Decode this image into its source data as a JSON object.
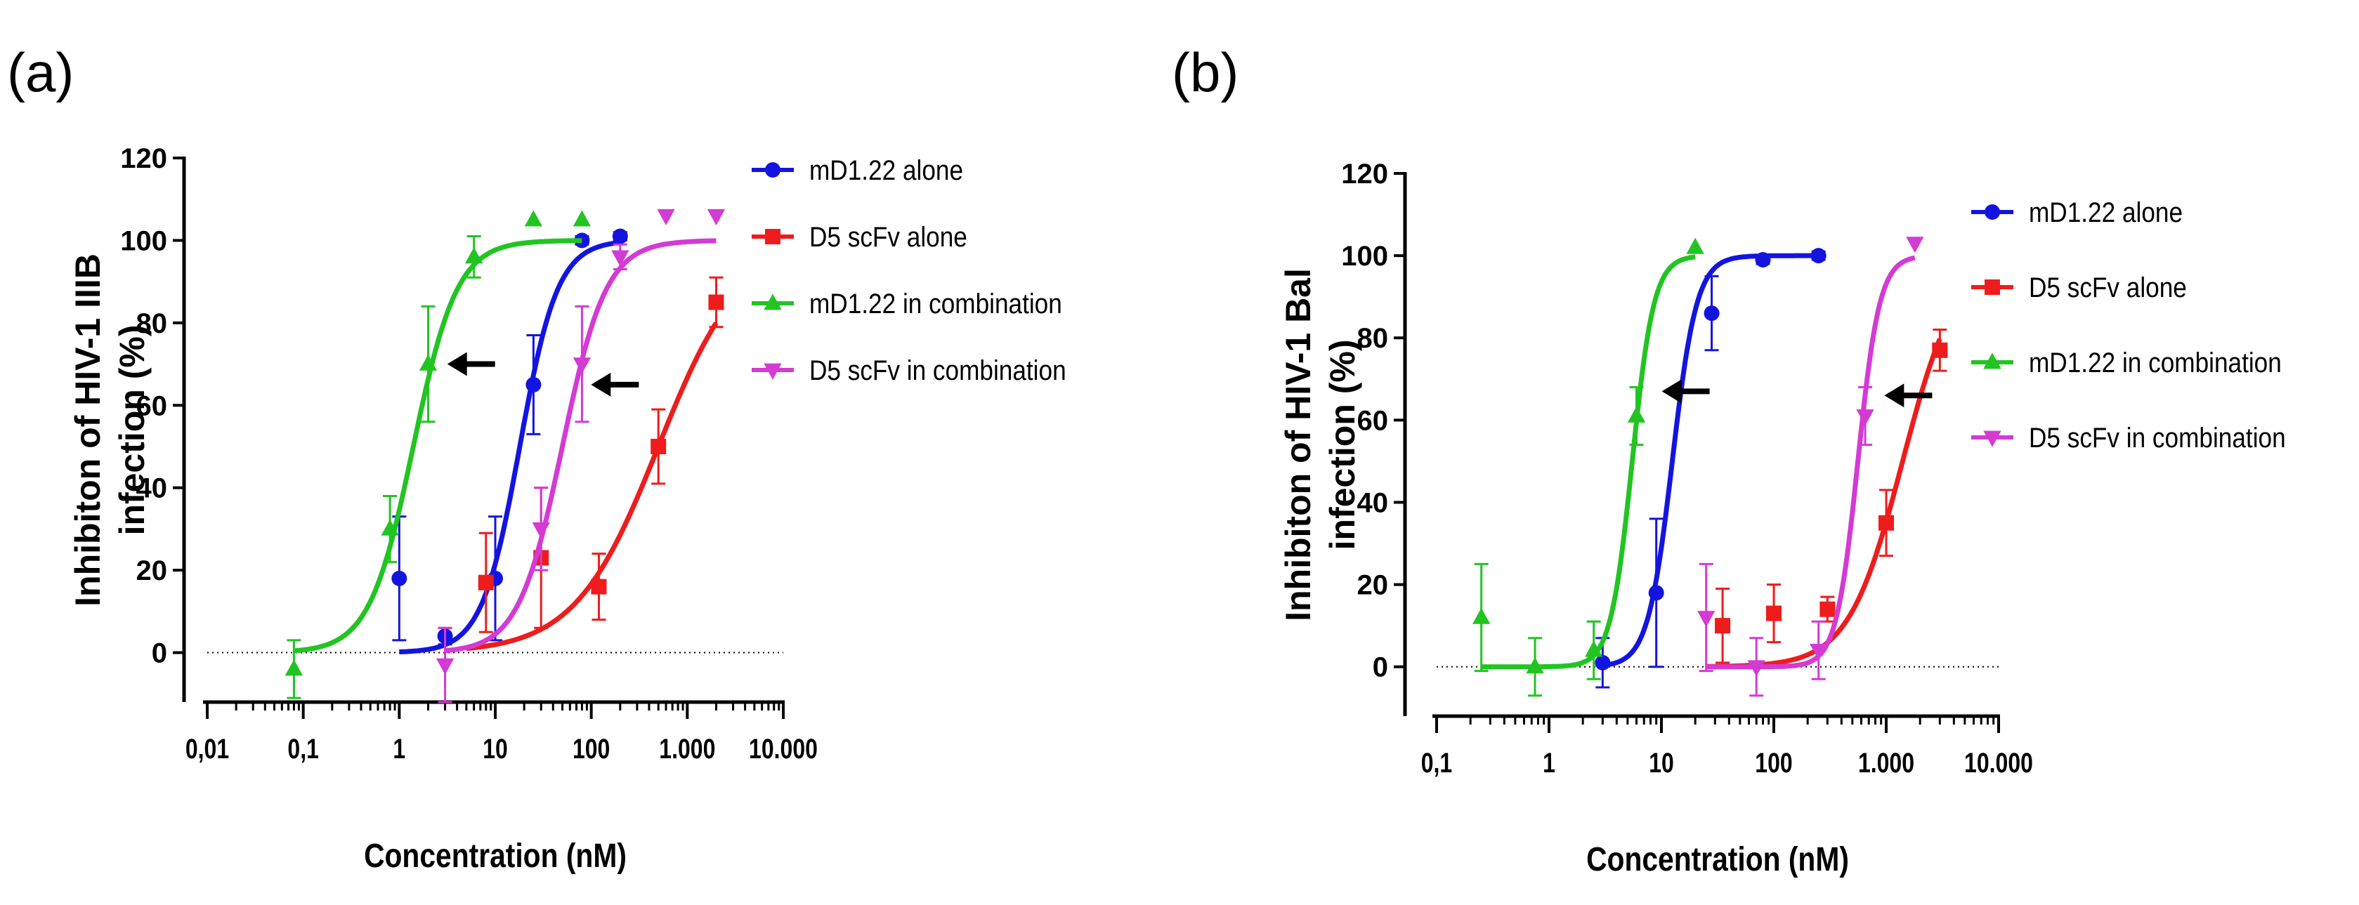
{
  "panels": [
    {
      "letter": "(a)",
      "ylabel_line1": "Inhibiton of HIV-1 IIIB",
      "ylabel_line2": "infection (%)",
      "xlabel": "Concentration (nM)"
    },
    {
      "letter": "(b)",
      "ylabel_line1": "Inhibiton of HIV-1 Bal",
      "ylabel_line2": "infection (%)",
      "xlabel": "Concentration (nM)"
    }
  ],
  "chart_data": [
    {
      "type": "scatter",
      "panel": "(a)",
      "xscale": "log",
      "xlim": [
        0.01,
        10000
      ],
      "ylim": [
        -12,
        120
      ],
      "xticks": [
        0.01,
        0.1,
        1,
        10,
        100,
        1000,
        10000
      ],
      "xtick_labels": [
        "0,01",
        "0,1",
        "1",
        "10",
        "100",
        "1.000",
        "10.000"
      ],
      "yticks": [
        0,
        20,
        40,
        60,
        80,
        100,
        120
      ],
      "ytick_labels": [
        "0",
        "20",
        "40",
        "60",
        "80",
        "100",
        "120"
      ],
      "xlabel": "Concentration (nM)",
      "ylabel": "Inhibiton of HIV-1 IIIB infection (%)",
      "reference_line_y": 0,
      "legend_position": "right",
      "series": [
        {
          "name": "mD1.22 alone",
          "color": "#1414e0",
          "marker": "circle",
          "points": [
            {
              "x": 1,
              "y": 18,
              "err": 15
            },
            {
              "x": 3,
              "y": 4,
              "err": 2
            },
            {
              "x": 10,
              "y": 18,
              "err": 15
            },
            {
              "x": 25,
              "y": 65,
              "err": 12
            },
            {
              "x": 80,
              "y": 100,
              "err": 1
            },
            {
              "x": 200,
              "y": 101,
              "err": 1
            }
          ],
          "curve": {
            "ic50": 18,
            "hill": 2.2,
            "xmin": 1,
            "xmax": 200
          }
        },
        {
          "name": "D5 scFv alone",
          "color": "#ee1c1c",
          "marker": "square",
          "points": [
            {
              "x": 8,
              "y": 17,
              "err": 12
            },
            {
              "x": 30,
              "y": 23,
              "err": 17
            },
            {
              "x": 120,
              "y": 16,
              "err": 8
            },
            {
              "x": 500,
              "y": 50,
              "err": 9
            },
            {
              "x": 2000,
              "y": 85,
              "err": 6
            }
          ],
          "curve": {
            "ic50": 500,
            "hill": 1.0,
            "xmin": 5,
            "xmax": 2000
          }
        },
        {
          "name": "mD1.22 in combination",
          "color": "#22c422",
          "marker": "triangle-up",
          "points": [
            {
              "x": 0.08,
              "y": -4,
              "err": 7
            },
            {
              "x": 0.8,
              "y": 30,
              "err": 8
            },
            {
              "x": 2,
              "y": 70,
              "err": 14
            },
            {
              "x": 6,
              "y": 96,
              "err": 5
            },
            {
              "x": 25,
              "y": 105,
              "err": 0
            },
            {
              "x": 80,
              "y": 105,
              "err": 0
            }
          ],
          "curve": {
            "ic50": 1.4,
            "hill": 1.9,
            "xmin": 0.08,
            "xmax": 80
          }
        },
        {
          "name": "D5 scFv in combination",
          "color": "#d43ad4",
          "marker": "triangle-down",
          "points": [
            {
              "x": 3,
              "y": -3,
              "err": 9
            },
            {
              "x": 30,
              "y": 30,
              "err": 10
            },
            {
              "x": 80,
              "y": 70,
              "err": 14
            },
            {
              "x": 200,
              "y": 96,
              "err": 3
            },
            {
              "x": 600,
              "y": 106,
              "err": 0
            },
            {
              "x": 2000,
              "y": 106,
              "err": 0
            }
          ],
          "curve": {
            "ic50": 50,
            "hill": 1.9,
            "xmin": 3,
            "xmax": 2000
          }
        }
      ],
      "annotations": [
        {
          "type": "arrow",
          "direction": "left",
          "x": 3.5,
          "y": 70
        },
        {
          "type": "arrow",
          "direction": "left",
          "x": 110,
          "y": 65
        }
      ]
    },
    {
      "type": "scatter",
      "panel": "(b)",
      "xscale": "log",
      "xlim": [
        0.1,
        10000
      ],
      "ylim": [
        -12,
        120
      ],
      "xticks": [
        0.1,
        1,
        10,
        100,
        1000,
        10000
      ],
      "xtick_labels": [
        "0,1",
        "1",
        "10",
        "100",
        "1.000",
        "10.000"
      ],
      "yticks": [
        0,
        20,
        40,
        60,
        80,
        100,
        120
      ],
      "ytick_labels": [
        "0",
        "20",
        "40",
        "60",
        "80",
        "100",
        "120"
      ],
      "xlabel": "Concentration (nM)",
      "ylabel": "Inhibiton of HIV-1 Bal infection (%)",
      "reference_line_y": 0,
      "legend_position": "right",
      "series": [
        {
          "name": "mD1.22 alone",
          "color": "#1414e0",
          "marker": "circle",
          "points": [
            {
              "x": 3,
              "y": 1,
              "err": 6
            },
            {
              "x": 9,
              "y": 18,
              "err": 18
            },
            {
              "x": 28,
              "y": 86,
              "err": 9
            },
            {
              "x": 80,
              "y": 99,
              "err": 1
            },
            {
              "x": 250,
              "y": 100,
              "err": 1
            }
          ],
          "curve": {
            "ic50": 12.5,
            "hill": 4.0,
            "xmin": 3,
            "xmax": 250
          }
        },
        {
          "name": "D5 scFv alone",
          "color": "#ee1c1c",
          "marker": "square",
          "points": [
            {
              "x": 35,
              "y": 10,
              "err": 9
            },
            {
              "x": 100,
              "y": 13,
              "err": 7
            },
            {
              "x": 300,
              "y": 14,
              "err": 3
            },
            {
              "x": 1000,
              "y": 35,
              "err": 8
            },
            {
              "x": 3000,
              "y": 77,
              "err": 5
            }
          ],
          "curve": {
            "ic50": 1400,
            "hill": 1.8,
            "xmin": 25,
            "xmax": 3000
          }
        },
        {
          "name": "mD1.22 in combination",
          "color": "#22c422",
          "marker": "triangle-up",
          "points": [
            {
              "x": 0.25,
              "y": 12,
              "err": 13
            },
            {
              "x": 0.75,
              "y": 0,
              "err": 7
            },
            {
              "x": 2.5,
              "y": 4,
              "err": 7
            },
            {
              "x": 6,
              "y": 61,
              "err": 7
            },
            {
              "x": 20,
              "y": 102,
              "err": 0
            }
          ],
          "curve": {
            "ic50": 5.5,
            "hill": 4.5,
            "xmin": 0.25,
            "xmax": 20
          }
        },
        {
          "name": "D5 scFv in combination",
          "color": "#d43ad4",
          "marker": "triangle-down",
          "points": [
            {
              "x": 25,
              "y": 12,
              "err": 13
            },
            {
              "x": 70,
              "y": 0,
              "err": 7
            },
            {
              "x": 250,
              "y": 4,
              "err": 7
            },
            {
              "x": 650,
              "y": 61,
              "err": 7
            },
            {
              "x": 1800,
              "y": 103,
              "err": 0
            }
          ],
          "curve": {
            "ic50": 560,
            "hill": 4.5,
            "xmin": 25,
            "xmax": 1800
          }
        }
      ],
      "annotations": [
        {
          "type": "arrow",
          "direction": "left",
          "x": 11,
          "y": 67
        },
        {
          "type": "arrow",
          "direction": "left",
          "x": 1050,
          "y": 66
        }
      ]
    }
  ]
}
